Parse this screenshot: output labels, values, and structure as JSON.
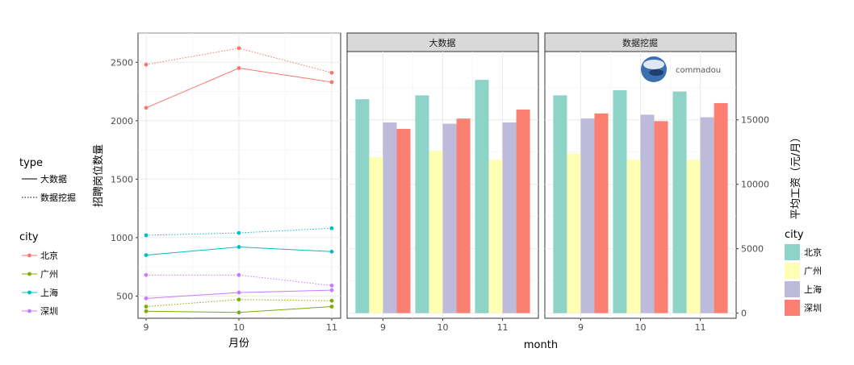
{
  "chart_data": [
    {
      "type": "line",
      "xlabel": "月份",
      "ylabel": "招聘岗位数量",
      "x": [
        9,
        10,
        11
      ],
      "xticks": [
        "9",
        "10",
        "11"
      ],
      "yticks": [
        500,
        1000,
        1500,
        2000,
        2500
      ],
      "ylim": [
        310,
        2750
      ],
      "grid": true,
      "series": [
        {
          "city": "北京",
          "type": "大数据",
          "values": [
            2110,
            2450,
            2330
          ]
        },
        {
          "city": "北京",
          "type": "数据挖掘",
          "values": [
            2480,
            2620,
            2410
          ]
        },
        {
          "city": "广州",
          "type": "大数据",
          "values": [
            370,
            360,
            410
          ]
        },
        {
          "city": "广州",
          "type": "数据挖掘",
          "values": [
            410,
            470,
            460
          ]
        },
        {
          "city": "上海",
          "type": "大数据",
          "values": [
            850,
            920,
            880
          ]
        },
        {
          "city": "上海",
          "type": "数据挖掘",
          "values": [
            1020,
            1040,
            1080
          ]
        },
        {
          "city": "深圳",
          "type": "大数据",
          "values": [
            480,
            530,
            550
          ]
        },
        {
          "city": "深圳",
          "type": "数据挖掘",
          "values": [
            680,
            680,
            590
          ]
        }
      ]
    },
    {
      "type": "bar",
      "xlabel": "month",
      "ylabel": "平均工资（元/月）",
      "categories": [
        "9",
        "10",
        "11"
      ],
      "yticks": [
        0,
        5000,
        10000,
        15000
      ],
      "ylim": [
        -400,
        20300
      ],
      "grid": true,
      "facets": [
        {
          "label": "大数据",
          "series": [
            {
              "name": "北京",
              "values": [
                16600,
                16900,
                18100
              ]
            },
            {
              "name": "广州",
              "values": [
                12100,
                12600,
                11900
              ]
            },
            {
              "name": "上海",
              "values": [
                14800,
                14700,
                14800
              ]
            },
            {
              "name": "深圳",
              "values": [
                14300,
                15100,
                15800
              ]
            }
          ]
        },
        {
          "label": "数据挖掘",
          "series": [
            {
              "name": "北京",
              "values": [
                16900,
                17300,
                17200
              ]
            },
            {
              "name": "广州",
              "values": [
                12400,
                11900,
                11900
              ]
            },
            {
              "name": "上海",
              "values": [
                15100,
                15400,
                15200
              ]
            },
            {
              "name": "深圳",
              "values": [
                15500,
                14900,
                16300
              ]
            }
          ]
        }
      ]
    }
  ],
  "legends": {
    "type_title": "type",
    "type_items": [
      "大数据",
      "数据挖掘"
    ],
    "city_title": "city",
    "city_items": [
      "北京",
      "广州",
      "上海",
      "深圳"
    ],
    "bar_city_title": "city"
  },
  "colors": {
    "line": {
      "北京": "#F8766D",
      "广州": "#7CAE00",
      "上海": "#00BFC4",
      "深圳": "#C77CFF"
    },
    "bar": {
      "北京": "#8DD3C7",
      "广州": "#FFFFB3",
      "上海": "#BEBADA",
      "深圳": "#FB8072"
    }
  },
  "watermark": "commadou"
}
